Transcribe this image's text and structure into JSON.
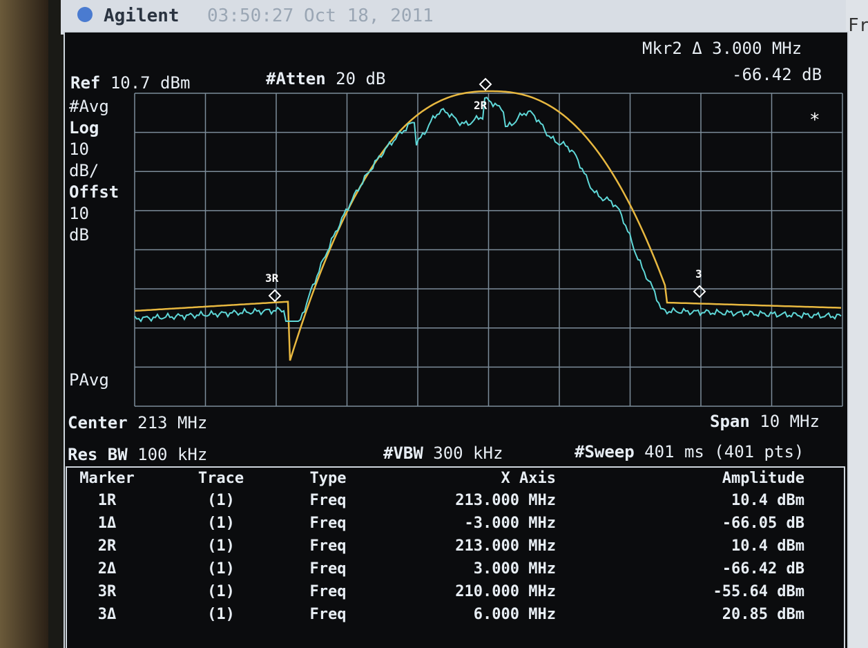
{
  "header": {
    "brand": "Agilent",
    "time": "03:50:27",
    "date": "Oct 18, 2011",
    "side": "Fr"
  },
  "marker_readout": {
    "line1": "Mkr2 Δ 3.000 MHz",
    "line2": "-66.42 dB"
  },
  "ref": {
    "label": "Ref",
    "value": "10.7 dBm"
  },
  "atten": {
    "label": "#Atten",
    "value": "20 dB"
  },
  "left_panel": [
    "#Avg",
    "Log",
    "10",
    "dB/",
    "Offst",
    "10",
    "dB"
  ],
  "pavg": "PAvg",
  "plot_markers": {
    "m2": "2R",
    "m3r": "3R",
    "m3": "3",
    "star": "*"
  },
  "center": {
    "label": "Center",
    "value": "213 MHz"
  },
  "span": {
    "label": "Span",
    "value": "10 MHz"
  },
  "res_bw": {
    "label": "Res BW",
    "value": "100 kHz"
  },
  "vbw": {
    "label": "#VBW",
    "value": "300 kHz"
  },
  "sweep": {
    "label": "#Sweep",
    "value": "401 ms (401 pts)"
  },
  "table": {
    "headers": [
      "Marker",
      "Trace",
      "Type",
      "X Axis",
      "Amplitude"
    ],
    "rows": [
      [
        "1R",
        "(1)",
        "Freq",
        "213.000 MHz",
        "10.4 dBm"
      ],
      [
        "1Δ",
        "(1)",
        "Freq",
        "-3.000 MHz",
        "-66.05 dB"
      ],
      [
        "2R",
        "(1)",
        "Freq",
        "213.000 MHz",
        "10.4 dBm"
      ],
      [
        "2Δ",
        "(1)",
        "Freq",
        "3.000 MHz",
        "-66.42 dB"
      ],
      [
        "3R",
        "(1)",
        "Freq",
        "210.000 MHz",
        "-55.64 dBm"
      ],
      [
        "3Δ",
        "(1)",
        "Freq",
        "6.000 MHz",
        "20.85 dBm"
      ]
    ]
  }
}
